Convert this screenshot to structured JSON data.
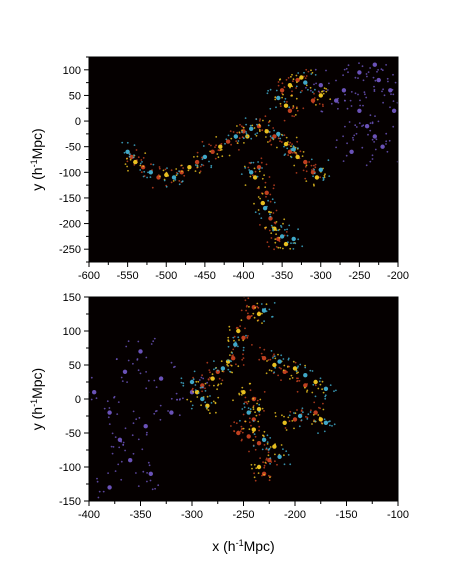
{
  "chart_data": [
    {
      "type": "scatter",
      "title": "",
      "xlabel": "",
      "ylabel": "y (h-1Mpc)",
      "ylabel_parts": {
        "pre": "y (h",
        "sup": "-1",
        "post": "Mpc)"
      },
      "xlim": [
        -600,
        -200
      ],
      "ylim": [
        -275,
        125
      ],
      "xticks": [
        -600,
        -550,
        -500,
        -450,
        -400,
        -350,
        -300,
        -250,
        -200
      ],
      "yticks": [
        -250,
        -200,
        -150,
        -100,
        -50,
        0,
        50,
        100
      ],
      "grid": false,
      "background": "#050000",
      "series": [
        {
          "color": "#6a52b8",
          "points": [
            [
              -300,
              70
            ],
            [
              -280,
              40
            ],
            [
              -270,
              60
            ],
            [
              -250,
              20
            ],
            [
              -240,
              -10
            ],
            [
              -230,
              -30
            ],
            [
              -260,
              -60
            ],
            [
              -250,
              95
            ],
            [
              -230,
              110
            ],
            [
              -210,
              60
            ],
            [
              -205,
              20
            ],
            [
              -220,
              -50
            ],
            [
              -225,
              80
            ]
          ]
        },
        {
          "color": "#c04020",
          "points": [
            [
              -545,
              -70
            ],
            [
              -530,
              -90
            ],
            [
              -510,
              -110
            ],
            [
              -480,
              -100
            ],
            [
              -460,
              -80
            ],
            [
              -440,
              -60
            ],
            [
              -420,
              -40
            ],
            [
              -400,
              -20
            ],
            [
              -380,
              -10
            ],
            [
              -360,
              -30
            ],
            [
              -340,
              -60
            ],
            [
              -320,
              -80
            ],
            [
              -310,
              -100
            ],
            [
              -380,
              -90
            ],
            [
              -370,
              -140
            ],
            [
              -365,
              -190
            ],
            [
              -355,
              -230
            ],
            [
              -340,
              20
            ],
            [
              -350,
              60
            ],
            [
              -330,
              80
            ],
            [
              -310,
              40
            ]
          ]
        },
        {
          "color": "#e8c020",
          "points": [
            [
              -540,
              -80
            ],
            [
              -500,
              -105
            ],
            [
              -470,
              -90
            ],
            [
              -430,
              -50
            ],
            [
              -395,
              -30
            ],
            [
              -370,
              -20
            ],
            [
              -345,
              -45
            ],
            [
              -330,
              -70
            ],
            [
              -305,
              -110
            ],
            [
              -385,
              -110
            ],
            [
              -375,
              -160
            ],
            [
              -360,
              -210
            ],
            [
              -345,
              -240
            ],
            [
              -345,
              30
            ],
            [
              -340,
              70
            ],
            [
              -325,
              85
            ],
            [
              -300,
              50
            ]
          ]
        },
        {
          "color": "#40a8c8",
          "points": [
            [
              -550,
              -60
            ],
            [
              -520,
              -100
            ],
            [
              -490,
              -110
            ],
            [
              -450,
              -70
            ],
            [
              -410,
              -30
            ],
            [
              -390,
              -15
            ],
            [
              -355,
              -25
            ],
            [
              -335,
              -55
            ],
            [
              -300,
              -95
            ],
            [
              -390,
              -100
            ],
            [
              -372,
              -170
            ],
            [
              -350,
              -225
            ],
            [
              -335,
              -230
            ],
            [
              -355,
              45
            ],
            [
              -320,
              75
            ]
          ]
        }
      ]
    },
    {
      "type": "scatter",
      "title": "",
      "xlabel": "x (h-1Mpc)",
      "xlabel_parts": {
        "pre": "x (h",
        "sup": "-1",
        "post": "Mpc)"
      },
      "ylabel": "y (h-1Mpc)",
      "ylabel_parts": {
        "pre": "y (h",
        "sup": "-1",
        "post": "Mpc)"
      },
      "xlim": [
        -400,
        -100
      ],
      "ylim": [
        -150,
        150
      ],
      "xticks": [
        -400,
        -350,
        -300,
        -250,
        -200,
        -150,
        -100
      ],
      "yticks": [
        -150,
        -100,
        -50,
        0,
        50,
        100,
        150
      ],
      "grid": false,
      "background": "#050000",
      "series": [
        {
          "color": "#6a52b8",
          "points": [
            [
              -395,
              10
            ],
            [
              -380,
              -20
            ],
            [
              -370,
              -60
            ],
            [
              -360,
              -90
            ],
            [
              -340,
              -110
            ],
            [
              -380,
              -130
            ],
            [
              -365,
              40
            ],
            [
              -350,
              70
            ],
            [
              -330,
              30
            ],
            [
              -300,
              10
            ],
            [
              -320,
              -20
            ],
            [
              -345,
              -40
            ]
          ]
        },
        {
          "color": "#c04020",
          "points": [
            [
              -290,
              20
            ],
            [
              -275,
              40
            ],
            [
              -260,
              60
            ],
            [
              -250,
              90
            ],
            [
              -245,
              120
            ],
            [
              -240,
              135
            ],
            [
              -230,
              60
            ],
            [
              -210,
              40
            ],
            [
              -190,
              20
            ],
            [
              -240,
              0
            ],
            [
              -240,
              -30
            ],
            [
              -245,
              -55
            ],
            [
              -235,
              -65
            ],
            [
              -225,
              -90
            ],
            [
              -230,
              -110
            ],
            [
              -255,
              -50
            ],
            [
              -200,
              -30
            ],
            [
              -180,
              -20
            ]
          ]
        },
        {
          "color": "#e8c020",
          "points": [
            [
              -295,
              10
            ],
            [
              -280,
              30
            ],
            [
              -265,
              55
            ],
            [
              -255,
              100
            ],
            [
              -235,
              125
            ],
            [
              -220,
              50
            ],
            [
              -200,
              45
            ],
            [
              -180,
              25
            ],
            [
              -250,
              10
            ],
            [
              -235,
              -15
            ],
            [
              -240,
              -45
            ],
            [
              -220,
              -70
            ],
            [
              -235,
              -100
            ],
            [
              -210,
              -35
            ],
            [
              -175,
              -30
            ],
            [
              -285,
              -10
            ]
          ]
        },
        {
          "color": "#40a8c8",
          "points": [
            [
              -300,
              25
            ],
            [
              -270,
              45
            ],
            [
              -258,
              80
            ],
            [
              -230,
              130
            ],
            [
              -215,
              55
            ],
            [
              -190,
              35
            ],
            [
              -170,
              15
            ],
            [
              -245,
              -20
            ],
            [
              -230,
              -60
            ],
            [
              -215,
              -85
            ],
            [
              -195,
              -25
            ],
            [
              -170,
              -35
            ],
            [
              -290,
              0
            ]
          ]
        }
      ]
    }
  ]
}
